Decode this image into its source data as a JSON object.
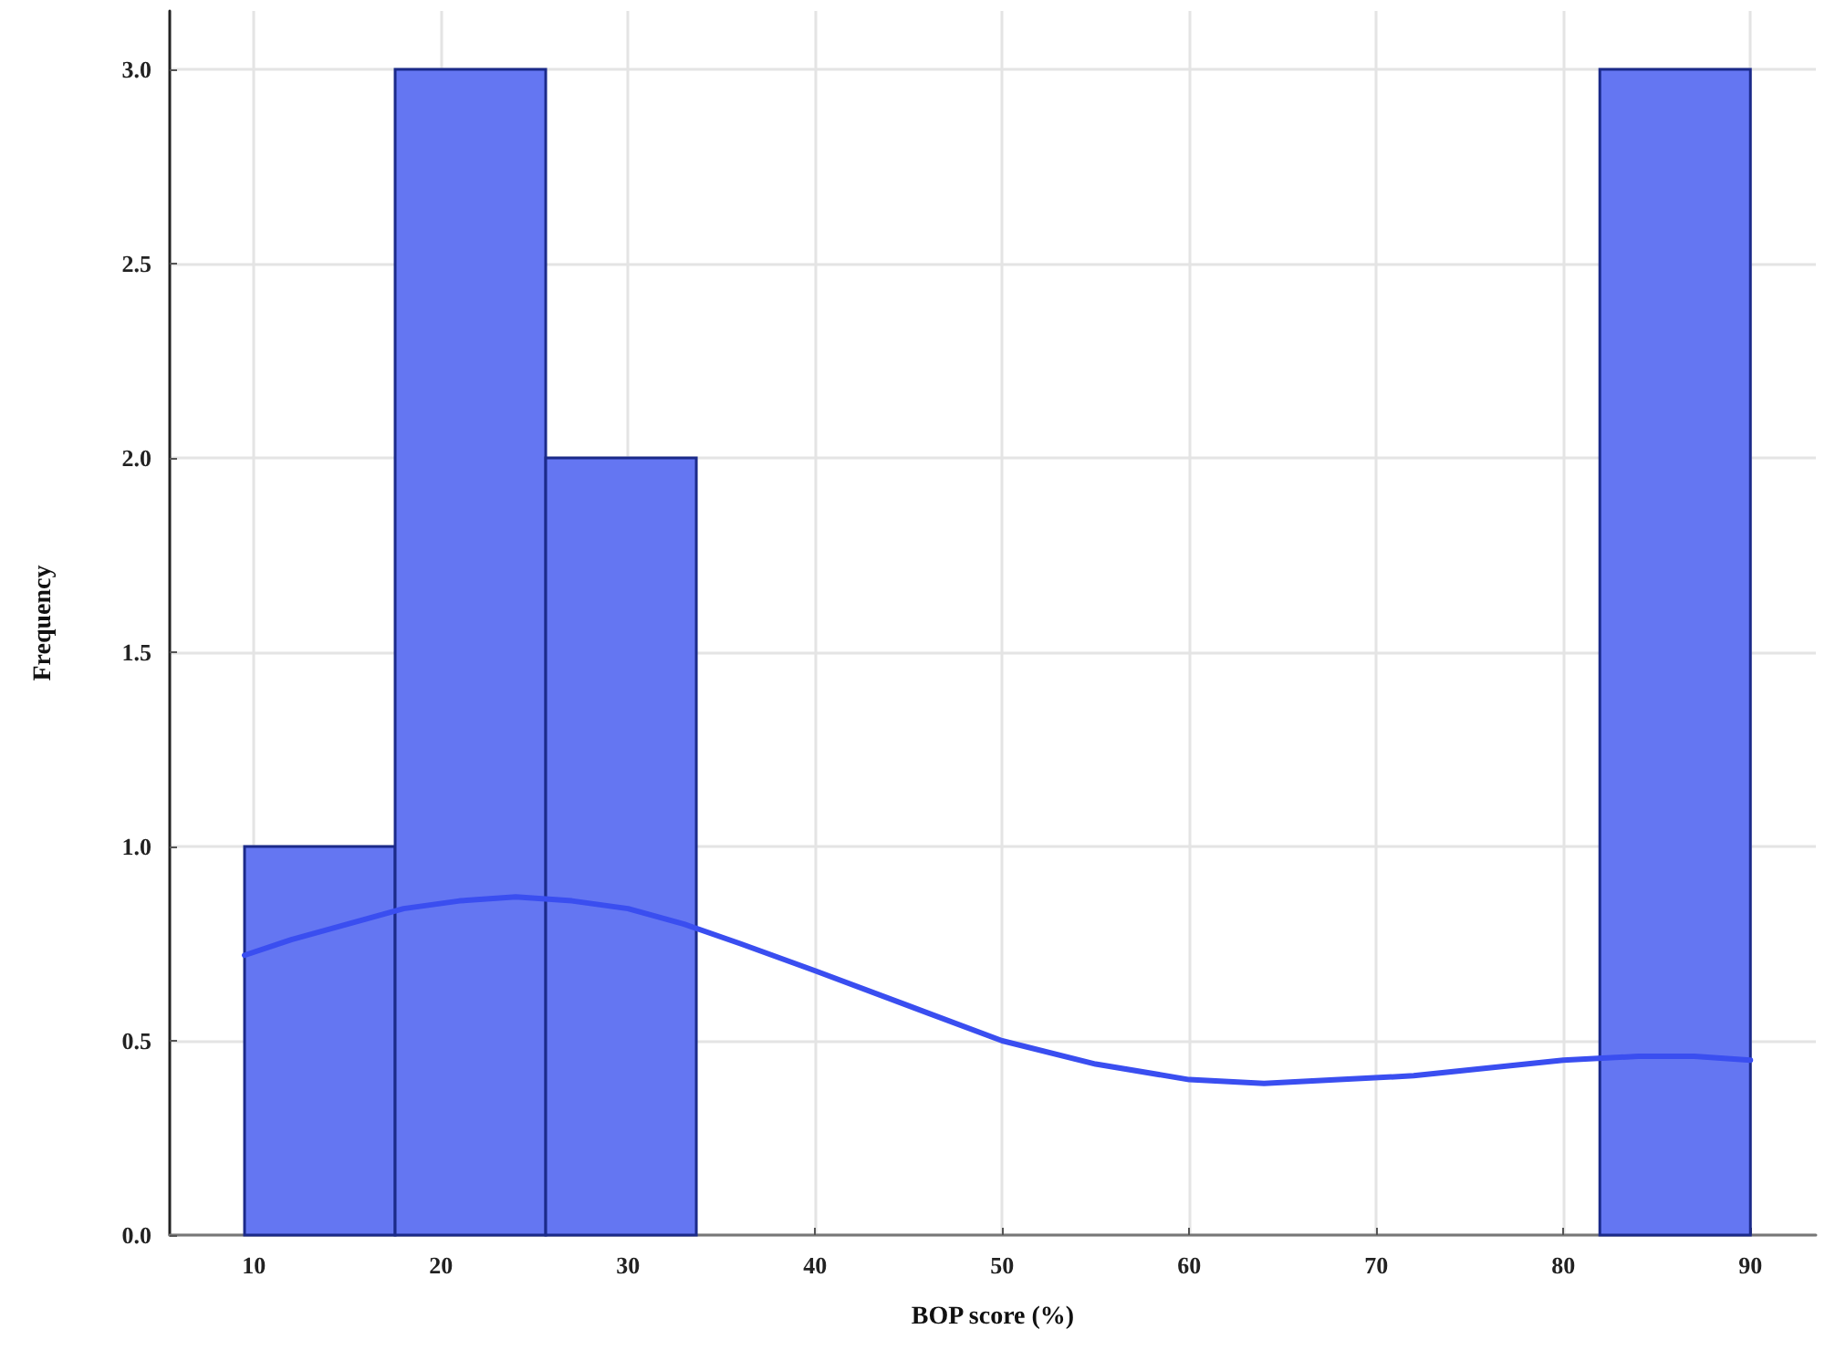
{
  "chart_data": {
    "type": "histogram",
    "xlabel": "BOP score (%)",
    "ylabel": "Frequency",
    "bins": [
      9.5,
      17.55,
      25.6,
      33.65,
      41.7,
      49.75,
      57.8,
      65.85,
      73.9,
      81.95,
      90
    ],
    "values": [
      1,
      3,
      2,
      0,
      0,
      0,
      0,
      0,
      0,
      3
    ],
    "color": "#6476f2",
    "series": [
      {
        "type": "line",
        "color": "#3a4ef0",
        "x": [
          9.5,
          12,
          15,
          18,
          21,
          24,
          27,
          30,
          33,
          36,
          40,
          45,
          50,
          55,
          60,
          64,
          68,
          72,
          76,
          80,
          84,
          87,
          90
        ],
        "values": [
          0.72,
          0.76,
          0.8,
          0.84,
          0.86,
          0.87,
          0.86,
          0.84,
          0.8,
          0.75,
          0.68,
          0.59,
          0.5,
          0.44,
          0.4,
          0.39,
          0.4,
          0.41,
          0.43,
          0.45,
          0.46,
          0.46,
          0.45
        ]
      }
    ],
    "xlim": [
      5.5,
      93.5
    ],
    "xticks": [
      10,
      20,
      30,
      40,
      50,
      60,
      70,
      80,
      90
    ],
    "ylim": [
      0,
      3.15
    ],
    "yticks": [
      {
        "value": 0,
        "label": "0.0"
      },
      {
        "value": 0.5,
        "label": "0.5"
      },
      {
        "value": 1,
        "label": "1.0"
      },
      {
        "value": 1.5,
        "label": "1.5"
      },
      {
        "value": 2,
        "label": "2.0"
      },
      {
        "value": 2.5,
        "label": "2.5"
      },
      {
        "value": 3,
        "label": "3.0"
      }
    ],
    "grid": true,
    "line_style": "solid",
    "marker": "none"
  }
}
